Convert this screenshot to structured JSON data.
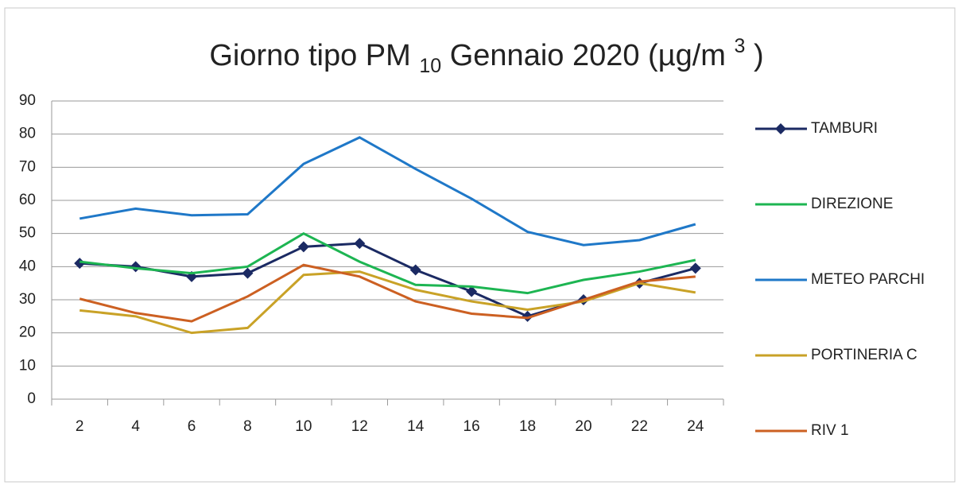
{
  "chart_data": {
    "type": "line",
    "title": [
      "Giorno tipo PM",
      "10",
      "Gennaio 2020 (µg/m",
      "3",
      ")"
    ],
    "categories": [
      "2",
      "4",
      "6",
      "8",
      "10",
      "12",
      "14",
      "16",
      "18",
      "20",
      "22",
      "24"
    ],
    "series": [
      {
        "name": "TAMBURI",
        "color": "#1b2a63",
        "marker": "diamond",
        "values": [
          41,
          40,
          37,
          38,
          46,
          47,
          39,
          32.5,
          25,
          30,
          35,
          39.5
        ]
      },
      {
        "name": "DIREZIONE",
        "color": "#1db552",
        "values": [
          41.5,
          39.5,
          38,
          40,
          50,
          41.5,
          34.5,
          34,
          32,
          36,
          38.5,
          42
        ]
      },
      {
        "name": "METEO PARCHI",
        "color": "#1f78c8",
        "values": [
          54.5,
          57.5,
          55.5,
          55.8,
          71,
          79,
          69.5,
          60.5,
          50.5,
          46.5,
          48,
          52.8
        ]
      },
      {
        "name": "PORTINERIA C",
        "color": "#c9a227",
        "values": [
          26.8,
          25,
          20,
          21.5,
          37.5,
          38.5,
          33,
          29.5,
          27,
          29.5,
          35,
          32.2
        ]
      },
      {
        "name": "RIV 1",
        "color": "#cc6022",
        "values": [
          30.3,
          26,
          23.5,
          31,
          40.5,
          37,
          29.5,
          25.8,
          24.5,
          30,
          35.5,
          37
        ]
      }
    ],
    "ylim": [
      0,
      90
    ],
    "yticks": [
      0,
      10,
      20,
      30,
      40,
      50,
      60,
      70,
      80,
      90
    ],
    "grid": true,
    "legend": "right"
  }
}
